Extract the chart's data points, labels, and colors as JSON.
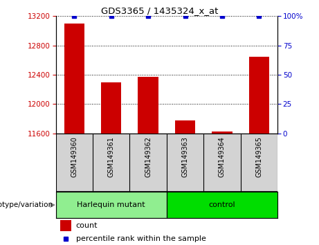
{
  "title": "GDS3365 / 1435324_x_at",
  "categories": [
    "GSM149360",
    "GSM149361",
    "GSM149362",
    "GSM149363",
    "GSM149364",
    "GSM149365"
  ],
  "count_values": [
    13100,
    12300,
    12370,
    11780,
    11630,
    12650
  ],
  "percentile_values": [
    100,
    100,
    100,
    100,
    100,
    100
  ],
  "ylim_left": [
    11600,
    13200
  ],
  "ylim_right": [
    0,
    100
  ],
  "yticks_left": [
    11600,
    12000,
    12400,
    12800,
    13200
  ],
  "yticks_right": [
    0,
    25,
    50,
    75,
    100
  ],
  "bar_color": "#cc0000",
  "percentile_color": "#0000cc",
  "grid_color": "#000000",
  "groups": [
    {
      "label": "Harlequin mutant",
      "indices": [
        0,
        1,
        2
      ],
      "color": "#90ee90"
    },
    {
      "label": "control",
      "indices": [
        3,
        4,
        5
      ],
      "color": "#00dd00"
    }
  ],
  "group_label": "genotype/variation",
  "legend_count_label": "count",
  "legend_percentile_label": "percentile rank within the sample",
  "bar_width": 0.55,
  "bg_color": "#ffffff",
  "plot_bg_color": "#ffffff",
  "tick_label_color_left": "#cc0000",
  "tick_label_color_right": "#0000cc"
}
